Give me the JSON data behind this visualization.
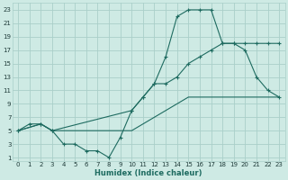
{
  "xlabel": "Humidex (Indice chaleur)",
  "bg_color": "#ceeae4",
  "grid_color": "#aacfc9",
  "line_color": "#1e6b60",
  "xlim": [
    -0.5,
    23.5
  ],
  "ylim": [
    0.5,
    24
  ],
  "xticks": [
    0,
    1,
    2,
    3,
    4,
    5,
    6,
    7,
    8,
    9,
    10,
    11,
    12,
    13,
    14,
    15,
    16,
    17,
    18,
    19,
    20,
    21,
    22,
    23
  ],
  "yticks": [
    1,
    3,
    5,
    7,
    9,
    11,
    13,
    15,
    17,
    19,
    21,
    23
  ],
  "line1_x": [
    0,
    1,
    2,
    3,
    4,
    5,
    6,
    7,
    8,
    9,
    10,
    11,
    12,
    13,
    14,
    15,
    16,
    17,
    18,
    19,
    20,
    21,
    22,
    23
  ],
  "line1_y": [
    5,
    6,
    6,
    5,
    3,
    3,
    2,
    2,
    1,
    4,
    8,
    10,
    12,
    16,
    22,
    23,
    23,
    23,
    18,
    18,
    17,
    13,
    11,
    10
  ],
  "line2_x": [
    0,
    2,
    3,
    10,
    11,
    12,
    13,
    14,
    15,
    16,
    17,
    18,
    19,
    20,
    21,
    22,
    23
  ],
  "line2_y": [
    5,
    6,
    5,
    8,
    10,
    12,
    12,
    13,
    15,
    16,
    17,
    18,
    18,
    18,
    18,
    18,
    18
  ],
  "line3_x": [
    0,
    2,
    3,
    10,
    11,
    12,
    13,
    14,
    15,
    16,
    17,
    18,
    19,
    20,
    21,
    22,
    23
  ],
  "line3_y": [
    5,
    6,
    5,
    5,
    6,
    7,
    8,
    9,
    10,
    10,
    10,
    10,
    10,
    10,
    10,
    10,
    10
  ]
}
